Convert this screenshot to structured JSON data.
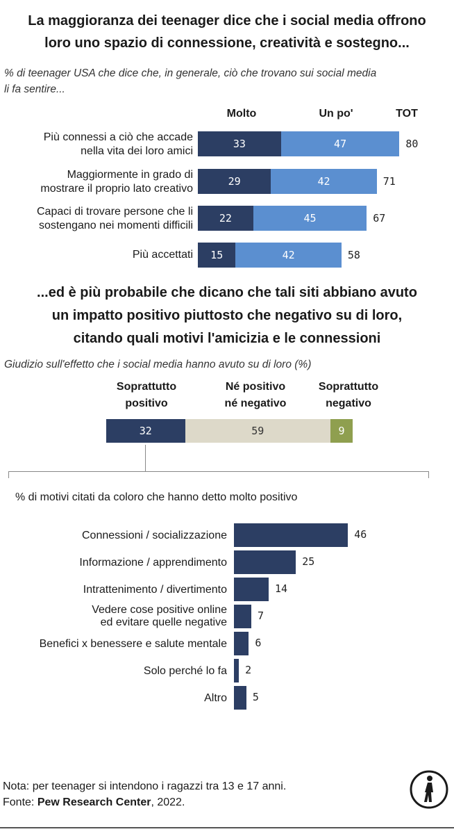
{
  "header": {
    "title_line1": "La maggioranza dei teenager dice che i social media offrono",
    "title_line2": "loro uno spazio di connessione, creatività e sostegno...",
    "subtitle_line1": "% di teenager USA che dice che, in generale, ciò che trovano sui social media",
    "subtitle_line2": "li fa sentire..."
  },
  "colors": {
    "dark": "#2c3e63",
    "light": "#5b8fd0",
    "neutral": "#ddd9c9",
    "negative": "#8f9f4f",
    "text": "#1a1a1a"
  },
  "section2": {
    "title_line1": "...ed è più probabile che dicano che tali siti abbiano avuto",
    "title_line2": "un impatto positivo piuttosto che negativo su di loro,",
    "title_line3": "citando quali motivi l'amicizia e le connessioni",
    "subtitle": "Giudizio sull'effetto che i social media hanno avuto su di loro (%)"
  },
  "chart_data": [
    {
      "type": "bar",
      "orientation": "horizontal",
      "stacked": true,
      "title": "% di teenager USA che dice che, in generale, ciò che trovano sui social media li fa sentire...",
      "column_headers": {
        "molto": "Molto",
        "un_po": "Un po'",
        "tot": "TOT"
      },
      "categories": [
        {
          "line1": "Più connessi a ciò che accade",
          "line2": "nella vita dei loro amici"
        },
        {
          "line1": "Maggiormente in grado di",
          "line2": "mostrare il proprio lato creativo"
        },
        {
          "line1": "Capaci di trovare persone che li",
          "line2": "sostengano nei momenti difficili"
        },
        {
          "line1": "Più accettati",
          "line2": ""
        }
      ],
      "series": [
        {
          "name": "Molto",
          "values": [
            33,
            29,
            22,
            15
          ]
        },
        {
          "name": "Un po'",
          "values": [
            47,
            42,
            45,
            42
          ]
        }
      ],
      "totals": [
        80,
        71,
        67,
        58
      ],
      "xlim": [
        0,
        100
      ]
    },
    {
      "type": "bar",
      "orientation": "horizontal",
      "stacked": true,
      "title": "Giudizio sull'effetto che i social media hanno avuto su di loro (%)",
      "segments": [
        {
          "line1": "Soprattutto",
          "line2": "positivo",
          "value": 32
        },
        {
          "line1": "Né positivo",
          "line2": "né negativo",
          "value": 59
        },
        {
          "line1": "Soprattutto",
          "line2": "negativo",
          "value": 9
        }
      ],
      "xlim": [
        0,
        100
      ]
    },
    {
      "type": "bar",
      "orientation": "horizontal",
      "title": "% di motivi citati da coloro che hanno detto molto positivo",
      "categories": [
        {
          "line1": "Connessioni / socializzazione",
          "line2": ""
        },
        {
          "line1": "Informazione / apprendimento",
          "line2": ""
        },
        {
          "line1": "Intrattenimento / divertimento",
          "line2": ""
        },
        {
          "line1": "Vedere cose positive online",
          "line2": "ed evitare quelle negative"
        },
        {
          "line1": "Benefici x benessere e salute mentale",
          "line2": ""
        },
        {
          "line1": "Solo perché lo fa",
          "line2": ""
        },
        {
          "line1": "Altro",
          "line2": ""
        }
      ],
      "values": [
        46,
        25,
        14,
        7,
        6,
        2,
        5
      ],
      "xlim": [
        0,
        50
      ]
    }
  ],
  "footer": {
    "note": "Nota: per teenager si intendono i ragazzi tra 13 e 17 anni.",
    "source_prefix": "Fonte: ",
    "source_name": "Pew Research Center",
    "source_suffix": ", 2022.",
    "logo_icon": "pedestrian-icon"
  }
}
